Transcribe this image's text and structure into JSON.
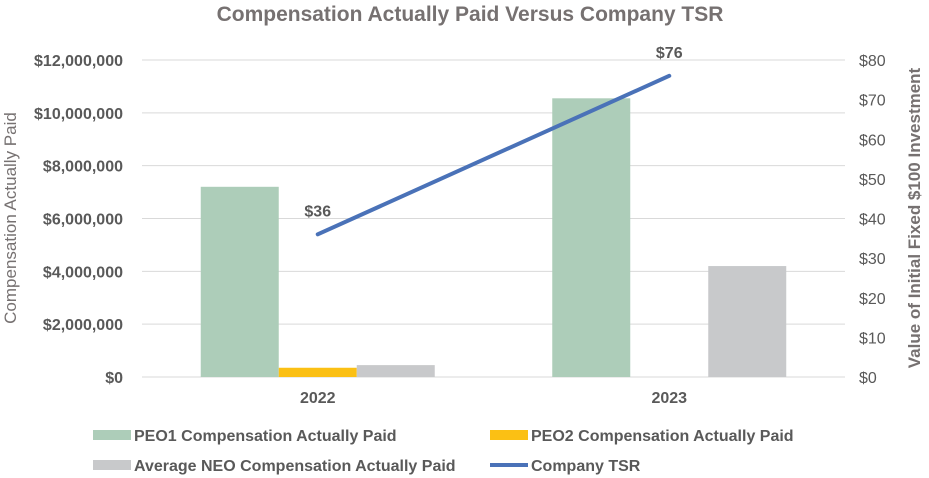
{
  "chart_data": {
    "type": "bar",
    "title": "Compensation Actually Paid Versus Company TSR",
    "ylabel": "Compensation Actually Paid",
    "y2label": "Value of Initial Fixed $100 Investment",
    "categories": [
      "2022",
      "2023"
    ],
    "ylim": [
      0,
      12000000
    ],
    "y2lim": [
      0,
      80
    ],
    "yticks": [
      0,
      2000000,
      4000000,
      6000000,
      8000000,
      10000000,
      12000000
    ],
    "ytick_labels": [
      "$0",
      "$2,000,000",
      "$4,000,000",
      "$6,000,000",
      "$8,000,000",
      "$10,000,000",
      "$12,000,000"
    ],
    "y2ticks": [
      0,
      10,
      20,
      30,
      40,
      50,
      60,
      70,
      80
    ],
    "y2tick_labels": [
      "$0",
      "$10",
      "$20",
      "$30",
      "$40",
      "$50",
      "$60",
      "$70",
      "$80"
    ],
    "series": [
      {
        "name": "PEO1 Compensation Actually Paid",
        "kind": "bar",
        "axis": "left",
        "color": "#adcdb9",
        "values": [
          7200000,
          10550000
        ]
      },
      {
        "name": "PEO2 Compensation Actually Paid",
        "kind": "bar",
        "axis": "left",
        "color": "#fbc014",
        "values": [
          350000,
          0
        ]
      },
      {
        "name": "Average NEO Compensation Actually Paid",
        "kind": "bar",
        "axis": "left",
        "color": "#c8c9cb",
        "values": [
          450000,
          4200000
        ]
      },
      {
        "name": "Company TSR",
        "kind": "line",
        "axis": "right",
        "color": "#4a72b8",
        "values": [
          36,
          76
        ],
        "data_labels": [
          "$36",
          "$76"
        ]
      }
    ],
    "legend_position": "bottom",
    "grid": true
  },
  "colors": {
    "text": "#595959",
    "title": "#767171",
    "grid": "#d9d9d9",
    "axis_title": "#767171"
  }
}
